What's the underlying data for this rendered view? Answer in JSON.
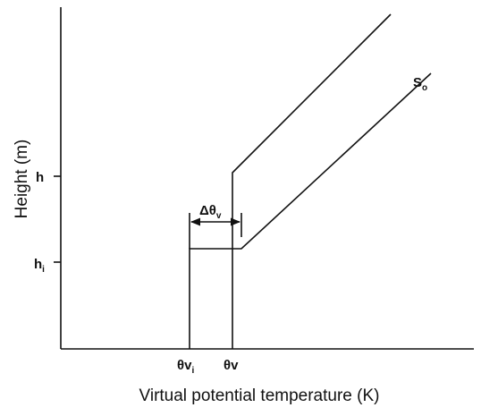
{
  "axes": {
    "y_label": "Height (m)",
    "x_label": "Virtual potential temperature (K)"
  },
  "y_ticks": [
    {
      "text": "h"
    },
    {
      "text": "h",
      "sub": "i"
    }
  ],
  "x_ticks": [
    {
      "text": "θv",
      "sub": "i"
    },
    {
      "text": "θv"
    }
  ],
  "jump_label": {
    "text": "Δθ",
    "sub": "v"
  },
  "profile_label": {
    "text": "S",
    "sub": "o"
  }
}
